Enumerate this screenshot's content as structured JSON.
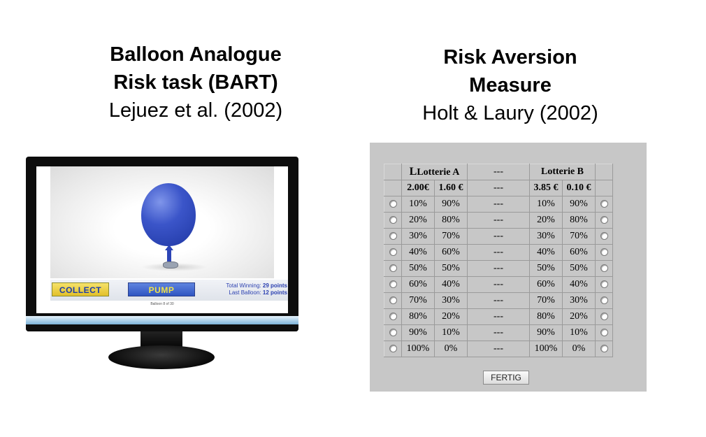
{
  "left_heading": {
    "line1": "Balloon Analogue",
    "line2": "Risk task (BART)",
    "line3": "Lejuez et al. (2002)"
  },
  "right_heading": {
    "line1": "Risk Aversion",
    "line2": "Measure",
    "line3": "Holt & Laury (2002)"
  },
  "bart": {
    "collect_label": "COLLECT",
    "pump_label": "PUMP",
    "total_winning_label": "Total Winning:",
    "total_winning_value": "29 points",
    "last_balloon_label": "Last Balloon:",
    "last_balloon_value": "12 points",
    "balloon_counter": "Balloon 8 of 30",
    "colors": {
      "balloon": "#3b55c9",
      "collect": "#e8c83a",
      "pump": "#3f64cc"
    },
    "icons": [
      "balloon-icon",
      "pump-nozzle-icon"
    ]
  },
  "lottery": {
    "header": {
      "first_mark": "L",
      "lotterie_a": "Lotterie A",
      "mid": "---",
      "lotterie_b": "Lotterie B"
    },
    "amounts": {
      "a_high": "2.00€",
      "a_low": "1.60 €",
      "mid": "---",
      "b_high": "3.85 €",
      "b_low": "0.10 €"
    },
    "rows": [
      {
        "p": "10%",
        "q": "90%",
        "mid": "---"
      },
      {
        "p": "20%",
        "q": "80%",
        "mid": "---"
      },
      {
        "p": "30%",
        "q": "70%",
        "mid": "---"
      },
      {
        "p": "40%",
        "q": "60%",
        "mid": "---"
      },
      {
        "p": "50%",
        "q": "50%",
        "mid": "---"
      },
      {
        "p": "60%",
        "q": "40%",
        "mid": "---"
      },
      {
        "p": "70%",
        "q": "30%",
        "mid": "---"
      },
      {
        "p": "80%",
        "q": "20%",
        "mid": "---"
      },
      {
        "p": "90%",
        "q": "10%",
        "mid": "---"
      },
      {
        "p": "100%",
        "q": "0%",
        "mid": "---"
      }
    ],
    "submit_label": "FERTIG"
  }
}
